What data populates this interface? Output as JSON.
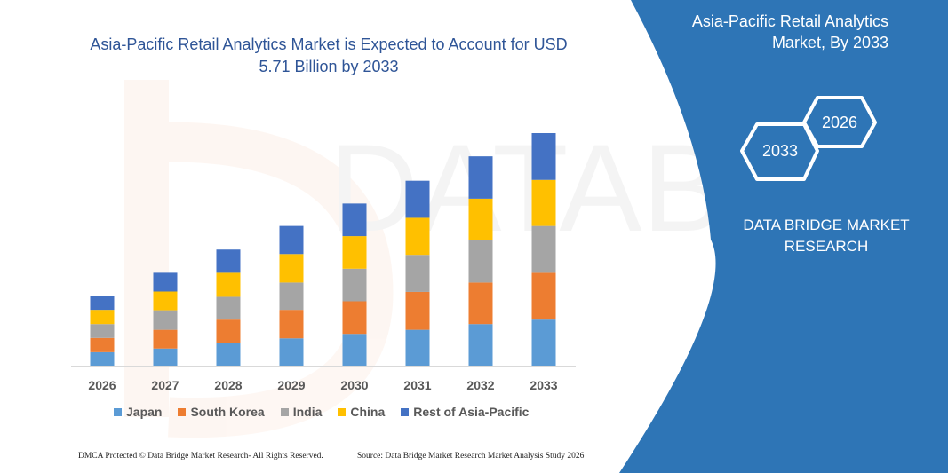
{
  "chart_data": {
    "type": "bar",
    "stacked": true,
    "title": "Asia-Pacific Retail Analytics Market is Expected to Account for USD 5.71 Billion by 2033",
    "categories": [
      "2026",
      "2027",
      "2028",
      "2029",
      "2030",
      "2031",
      "2032",
      "2033"
    ],
    "series": [
      {
        "name": "Japan",
        "color": "#5b9bd5",
        "values": [
          0.33,
          0.42,
          0.56,
          0.67,
          0.78,
          0.88,
          1.02,
          1.13
        ]
      },
      {
        "name": "South Korea",
        "color": "#ed7d31",
        "values": [
          0.35,
          0.46,
          0.57,
          0.7,
          0.8,
          0.93,
          1.02,
          1.15
        ]
      },
      {
        "name": "India",
        "color": "#a5a5a5",
        "values": [
          0.34,
          0.48,
          0.56,
          0.67,
          0.8,
          0.91,
          1.04,
          1.15
        ]
      },
      {
        "name": "China",
        "color": "#ffc000",
        "values": [
          0.35,
          0.46,
          0.59,
          0.7,
          0.8,
          0.91,
          1.02,
          1.13
        ]
      },
      {
        "name": "Rest of Asia-Pacific",
        "color": "#4472c4",
        "values": [
          0.33,
          0.46,
          0.57,
          0.69,
          0.8,
          0.91,
          1.04,
          1.15
        ]
      }
    ],
    "ylim": [
      0,
      5.71
    ],
    "grid": false,
    "legend": "bottom",
    "xlabel": "",
    "ylabel": ""
  },
  "panel": {
    "title": "Asia-Pacific Retail Analytics Market, By 2033",
    "hex_a": "2026",
    "hex_b": "2033",
    "brand": "DATA BRIDGE MARKET RESEARCH",
    "color": "#2e75b6"
  },
  "footer": {
    "left": "DMCA Protected © Data Bridge Market Research- All Rights Reserved.",
    "right": "Source: Data Bridge Market Research  Market Analysis Study 2026"
  }
}
